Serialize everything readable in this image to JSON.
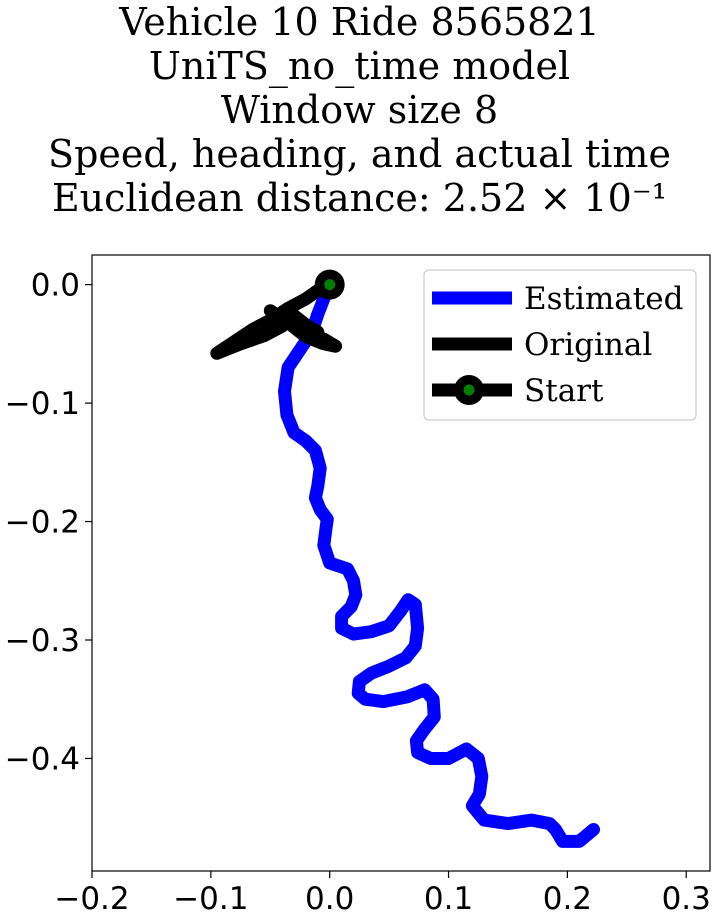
{
  "title_lines": [
    "Vehicle 10 Ride 8565821",
    "UniTS_no_time model",
    "Window size 8",
    "Speed, heading, and actual time",
    "Euclidean distance: 2.52 × 10⁻¹"
  ],
  "chart_data": {
    "type": "line",
    "xlim": [
      -0.2,
      0.32
    ],
    "ylim": [
      -0.495,
      0.025
    ],
    "xticks": [
      -0.2,
      -0.1,
      0.0,
      0.1,
      0.2,
      0.3
    ],
    "xtick_labels": [
      "−0.2",
      "−0.1",
      "0.0",
      "0.1",
      "0.2",
      "0.3"
    ],
    "yticks": [
      0.0,
      -0.1,
      -0.2,
      -0.3,
      -0.4
    ],
    "ytick_labels": [
      "0.0",
      "−0.1",
      "−0.2",
      "−0.3",
      "−0.4"
    ],
    "grid": false,
    "legend_position": "top-right",
    "series": [
      {
        "name": "Estimated",
        "color": "#0000ff",
        "x": [
          0.0,
          -0.005,
          -0.01,
          -0.015,
          -0.025,
          -0.035,
          -0.038,
          -0.036,
          -0.03,
          -0.02,
          -0.012,
          -0.008,
          -0.01,
          -0.012,
          -0.008,
          -0.002,
          -0.003,
          -0.005,
          -0.0,
          0.015,
          0.02,
          0.022,
          0.018,
          0.01,
          0.01,
          0.02,
          0.035,
          0.05,
          0.06,
          0.066,
          0.072,
          0.074,
          0.072,
          0.064,
          0.05,
          0.035,
          0.025,
          0.024,
          0.03,
          0.045,
          0.065,
          0.08,
          0.087,
          0.088,
          0.08,
          0.073,
          0.074,
          0.085,
          0.1,
          0.115,
          0.125,
          0.128,
          0.126,
          0.12,
          0.13,
          0.15,
          0.17,
          0.185,
          0.19,
          0.196,
          0.21,
          0.222
        ],
        "y": [
          0.0,
          -0.012,
          -0.025,
          -0.04,
          -0.055,
          -0.07,
          -0.09,
          -0.11,
          -0.125,
          -0.132,
          -0.14,
          -0.155,
          -0.17,
          -0.18,
          -0.19,
          -0.198,
          -0.205,
          -0.22,
          -0.235,
          -0.24,
          -0.25,
          -0.262,
          -0.272,
          -0.28,
          -0.29,
          -0.295,
          -0.293,
          -0.288,
          -0.275,
          -0.266,
          -0.27,
          -0.29,
          -0.305,
          -0.315,
          -0.322,
          -0.328,
          -0.335,
          -0.345,
          -0.35,
          -0.352,
          -0.348,
          -0.342,
          -0.35,
          -0.365,
          -0.375,
          -0.385,
          -0.395,
          -0.4,
          -0.4,
          -0.392,
          -0.4,
          -0.415,
          -0.43,
          -0.44,
          -0.452,
          -0.455,
          -0.452,
          -0.455,
          -0.46,
          -0.47,
          -0.47,
          -0.46
        ]
      },
      {
        "name": "Original",
        "color": "#000000",
        "x": [
          0.0,
          -0.01,
          -0.02,
          -0.035,
          -0.05,
          -0.065,
          -0.08,
          -0.095,
          -0.075,
          -0.055,
          -0.04,
          -0.05,
          -0.035,
          -0.025,
          -0.015,
          -0.005,
          0.005,
          -0.005,
          -0.02,
          -0.03,
          -0.03,
          -0.025,
          -0.015,
          -0.01,
          -0.02
        ],
        "y": [
          0.0,
          -0.005,
          -0.012,
          -0.02,
          -0.03,
          -0.038,
          -0.048,
          -0.058,
          -0.05,
          -0.043,
          -0.035,
          -0.022,
          -0.032,
          -0.04,
          -0.043,
          -0.046,
          -0.052,
          -0.05,
          -0.044,
          -0.036,
          -0.026,
          -0.03,
          -0.038,
          -0.04,
          -0.034
        ]
      }
    ],
    "start_point": {
      "name": "Start",
      "x": 0.0,
      "y": 0.0,
      "outer_color": "#000000",
      "inner_color": "#008000"
    }
  }
}
